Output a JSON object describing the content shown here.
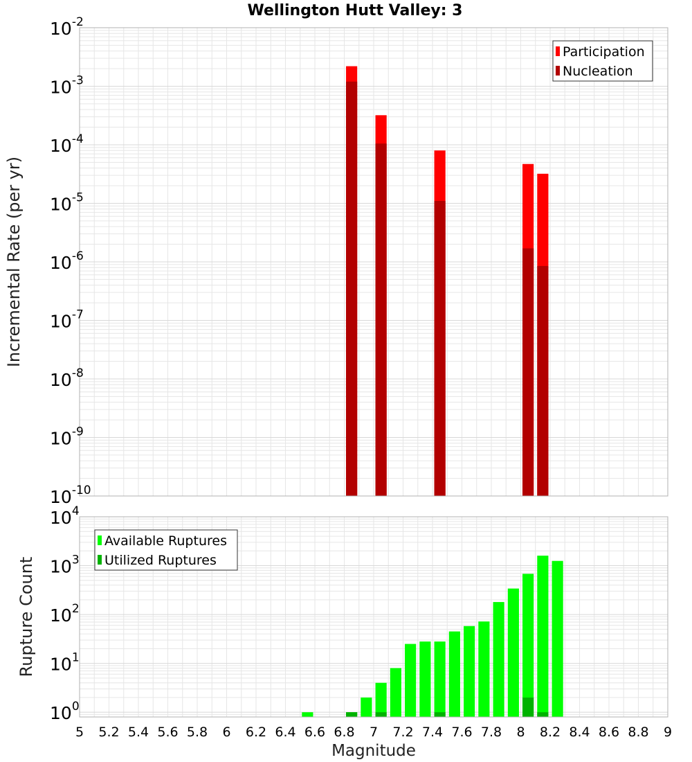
{
  "title": "Wellington Hutt Valley: 3",
  "colors": {
    "participation": "#ff0000",
    "nucleation": "#b20000",
    "available": "#00ff00",
    "utilized": "#00b200",
    "grid": "#e6e6e6",
    "frame": "#b0b0b0"
  },
  "chart_data": [
    {
      "type": "bar",
      "title": "Wellington Hutt Valley: 3",
      "ylabel": "Incremental Rate (per yr)",
      "xlabel": "",
      "ylog": true,
      "ylim": [
        1e-10,
        0.01
      ],
      "xlim": [
        5,
        9
      ],
      "grid": true,
      "legend_position": "top-right",
      "y_ticks": [
        {
          "base": "10",
          "exp": "-10"
        },
        {
          "base": "10",
          "exp": "-9"
        },
        {
          "base": "10",
          "exp": "-8"
        },
        {
          "base": "10",
          "exp": "-7"
        },
        {
          "base": "10",
          "exp": "-6"
        },
        {
          "base": "10",
          "exp": "-5"
        },
        {
          "base": "10",
          "exp": "-4"
        },
        {
          "base": "10",
          "exp": "-3"
        },
        {
          "base": "10",
          "exp": "-2"
        }
      ],
      "legend": [
        "Participation",
        "Nucleation"
      ],
      "series": [
        {
          "name": "Participation",
          "points": [
            {
              "x": 6.85,
              "y": 0.0022
            },
            {
              "x": 7.05,
              "y": 0.00032
            },
            {
              "x": 7.45,
              "y": 8e-05
            },
            {
              "x": 8.05,
              "y": 4.7e-05
            },
            {
              "x": 8.15,
              "y": 3.2e-05
            }
          ]
        },
        {
          "name": "Nucleation",
          "points": [
            {
              "x": 6.85,
              "y": 0.0012
            },
            {
              "x": 7.05,
              "y": 0.000105
            },
            {
              "x": 7.45,
              "y": 1.1e-05
            },
            {
              "x": 8.05,
              "y": 1.7e-06
            },
            {
              "x": 8.15,
              "y": 8.5e-07
            }
          ]
        }
      ]
    },
    {
      "type": "bar",
      "title": "",
      "ylabel": "Rupture Count",
      "xlabel": "Magnitude",
      "ylog": true,
      "ylim": [
        0.8,
        10000
      ],
      "xlim": [
        5,
        9
      ],
      "grid": true,
      "legend_position": "top-left",
      "y_ticks": [
        {
          "base": "10",
          "exp": "0"
        },
        {
          "base": "10",
          "exp": "1"
        },
        {
          "base": "10",
          "exp": "2"
        },
        {
          "base": "10",
          "exp": "3"
        },
        {
          "base": "10",
          "exp": "4"
        }
      ],
      "x_ticks": [
        "5",
        "5.2",
        "5.4",
        "5.6",
        "5.8",
        "6",
        "6.2",
        "6.4",
        "6.6",
        "6.8",
        "7",
        "7.2",
        "7.4",
        "7.6",
        "7.8",
        "8",
        "8.2",
        "8.4",
        "8.6",
        "8.8",
        "9"
      ],
      "legend": [
        "Available Ruptures",
        "Utilized Ruptures"
      ],
      "series": [
        {
          "name": "Available Ruptures",
          "points": [
            {
              "x": 6.55,
              "y": 1
            },
            {
              "x": 6.85,
              "y": 1
            },
            {
              "x": 6.95,
              "y": 2
            },
            {
              "x": 7.05,
              "y": 4
            },
            {
              "x": 7.15,
              "y": 8
            },
            {
              "x": 7.25,
              "y": 25
            },
            {
              "x": 7.35,
              "y": 28
            },
            {
              "x": 7.45,
              "y": 28
            },
            {
              "x": 7.55,
              "y": 45
            },
            {
              "x": 7.65,
              "y": 58
            },
            {
              "x": 7.75,
              "y": 72
            },
            {
              "x": 7.85,
              "y": 180
            },
            {
              "x": 7.95,
              "y": 340
            },
            {
              "x": 8.05,
              "y": 680
            },
            {
              "x": 8.15,
              "y": 1600
            },
            {
              "x": 8.25,
              "y": 1250
            }
          ]
        },
        {
          "name": "Utilized Ruptures",
          "points": [
            {
              "x": 6.85,
              "y": 1
            },
            {
              "x": 7.05,
              "y": 1
            },
            {
              "x": 7.45,
              "y": 1
            },
            {
              "x": 8.05,
              "y": 2
            },
            {
              "x": 8.15,
              "y": 1
            }
          ]
        }
      ]
    }
  ]
}
